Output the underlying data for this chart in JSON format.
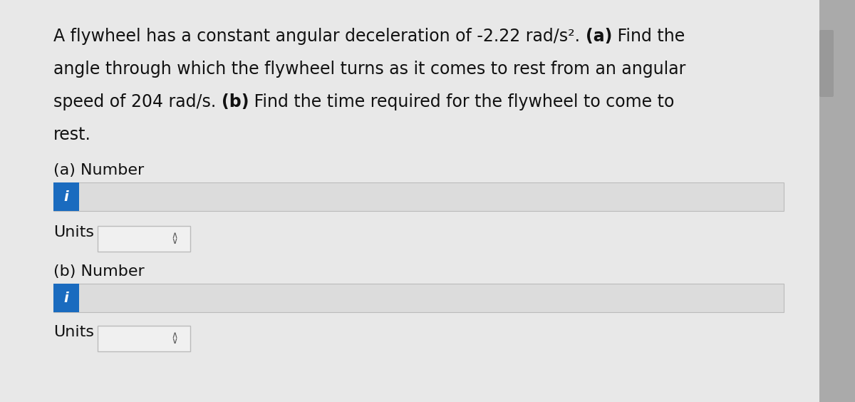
{
  "bg_color": "#c8c8c8",
  "panel_color": "#e8e8e8",
  "input_box_color": "#dcdcdc",
  "blue_color": "#1a6bbf",
  "text_color": "#111111",
  "border_color": "#bbbbbb",
  "scrollbar_bg": "#c0c0c0",
  "scrollbar_handle": "#999999",
  "units_box_color": "#f0f0f0",
  "line1_normal": "A flywheel has a constant angular deceleration of -2.22 rad/s². ",
  "line1_bold": "(a)",
  "line1_end": " Find the",
  "line2": "angle through which the flywheel turns as it comes to rest from an angular",
  "line3_normal": "speed of 204 rad/s. ",
  "line3_bold": "(b)",
  "line3_end": " Find the time required for the flywheel to come to",
  "line4": "rest.",
  "label_a": "(a) Number",
  "label_b": "(b) Number",
  "label_units": "Units",
  "italic_i": "i",
  "font_size_body": 17,
  "font_size_label": 16,
  "font_size_i": 14,
  "font_size_units_arrow": 12
}
